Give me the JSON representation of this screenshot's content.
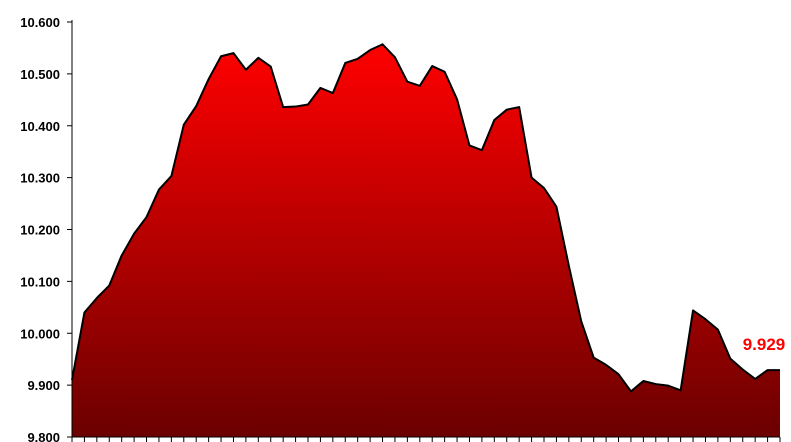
{
  "chart_data": {
    "type": "area",
    "title": "",
    "xlabel": "",
    "ylabel": "",
    "ylim": [
      9.8,
      10.6
    ],
    "y_ticks": [
      9.8,
      9.9,
      10.0,
      10.1,
      10.2,
      10.3,
      10.4,
      10.5,
      10.6
    ],
    "y_tick_labels": [
      "9.800",
      "9.900",
      "10.000",
      "10.100",
      "10.200",
      "10.300",
      "10.400",
      "10.500",
      "10.600"
    ],
    "grid": false,
    "legend": "none",
    "values": [
      9.91,
      10.04,
      10.068,
      10.092,
      10.15,
      10.192,
      10.224,
      10.277,
      10.303,
      10.402,
      10.438,
      10.49,
      10.534,
      10.54,
      10.508,
      10.531,
      10.514,
      10.436,
      10.437,
      10.441,
      10.473,
      10.463,
      10.521,
      10.529,
      10.546,
      10.557,
      10.532,
      10.485,
      10.477,
      10.515,
      10.504,
      10.451,
      10.362,
      10.353,
      10.411,
      10.431,
      10.436,
      10.3,
      10.28,
      10.244,
      10.13,
      10.023,
      9.953,
      9.939,
      9.921,
      9.888,
      9.908,
      9.902,
      9.899,
      9.89,
      10.044,
      10.027,
      10.007,
      9.951,
      9.93,
      9.912,
      9.929,
      9.929
    ],
    "last_value_label": "9.929",
    "colors": {
      "fill_top": "#ff0000",
      "fill_bottom": "#6b0000",
      "line": "#000000",
      "last_label": "#ff0000"
    }
  }
}
